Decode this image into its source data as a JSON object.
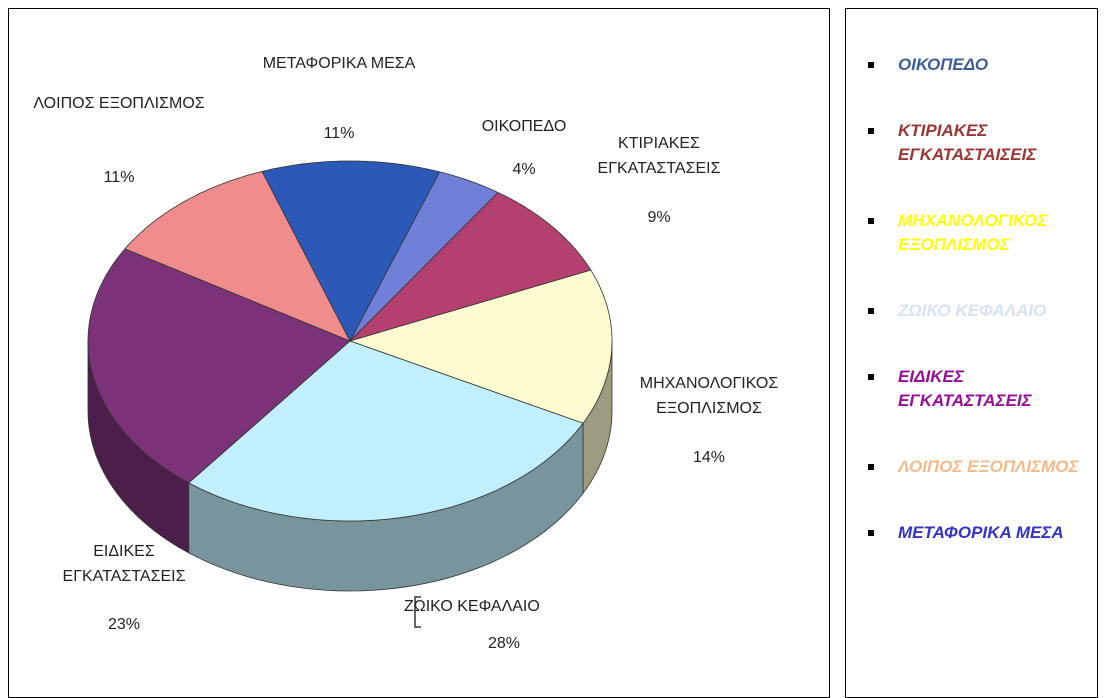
{
  "chart_data": {
    "type": "pie",
    "categories": [
      "ΟΙΚΟΠΕΔΟ",
      "ΚΤΙΡΙΑΚΕΣ ΕΓΚΑΤΑΣΤΑΣΕΙΣ",
      "ΜΗΧΑΝΟΛΟΓΙΚΟΣ ΕΞΟΠΛΙΣΜΟΣ",
      "ΖΩΙΚΟ ΚΕΦΑΛΑΙΟ",
      "ΕΙΔΙΚΕΣ ΕΓΚΑΤΑΣΤΑΣΕΙΣ",
      "ΛΟΙΠΟΣ ΕΞΟΠΛΙΣΜΟΣ",
      "ΜΕΤΑΦΟΡΙΚΑ ΜΕΣΑ"
    ],
    "values": [
      4,
      9,
      14,
      28,
      23,
      11,
      11
    ],
    "value_labels": [
      "4%",
      "9%",
      "14%",
      "28%",
      "23%",
      "11%",
      "11%"
    ],
    "colors": [
      "#7080d8",
      "#b3406f",
      "#fdfbcf",
      "#c2effd",
      "#7b3278",
      "#f08c8c",
      "#2c58b8"
    ]
  },
  "legend": [
    {
      "text": "ΟΙΚΟΠΕΔΟ",
      "color": "#3b5e9a"
    },
    {
      "text": "ΚΤΙΡΙΑΚΕΣ ΕΓΚΑΤΑΣΤΑΙΣΕΙΣ",
      "color": "#9e3535"
    },
    {
      "text": "ΜΗΧΑΝΟΛΟΓΙΚΟΣ ΕΞΟΠΛΙΣΜΟΣ",
      "color": "#ffff00"
    },
    {
      "text": "ΖΩΙΚΟ ΚΕΦΑΛΑΙΟ",
      "color": "#d6e2f0"
    },
    {
      "text": "ΕΙΔΙΚΕΣ ΕΓΚΑΤΑΣΤΑΣΕΙΣ",
      "color": "#9a0d9a"
    },
    {
      "text": "ΛΟΙΠΟΣ ΕΞΟΠΛΙΣΜΟΣ",
      "color": "#f5b98a"
    },
    {
      "text": "ΜΕΤΑΦΟΡΙΚΑ ΜΕΣΑ",
      "color": "#3333cc"
    }
  ]
}
